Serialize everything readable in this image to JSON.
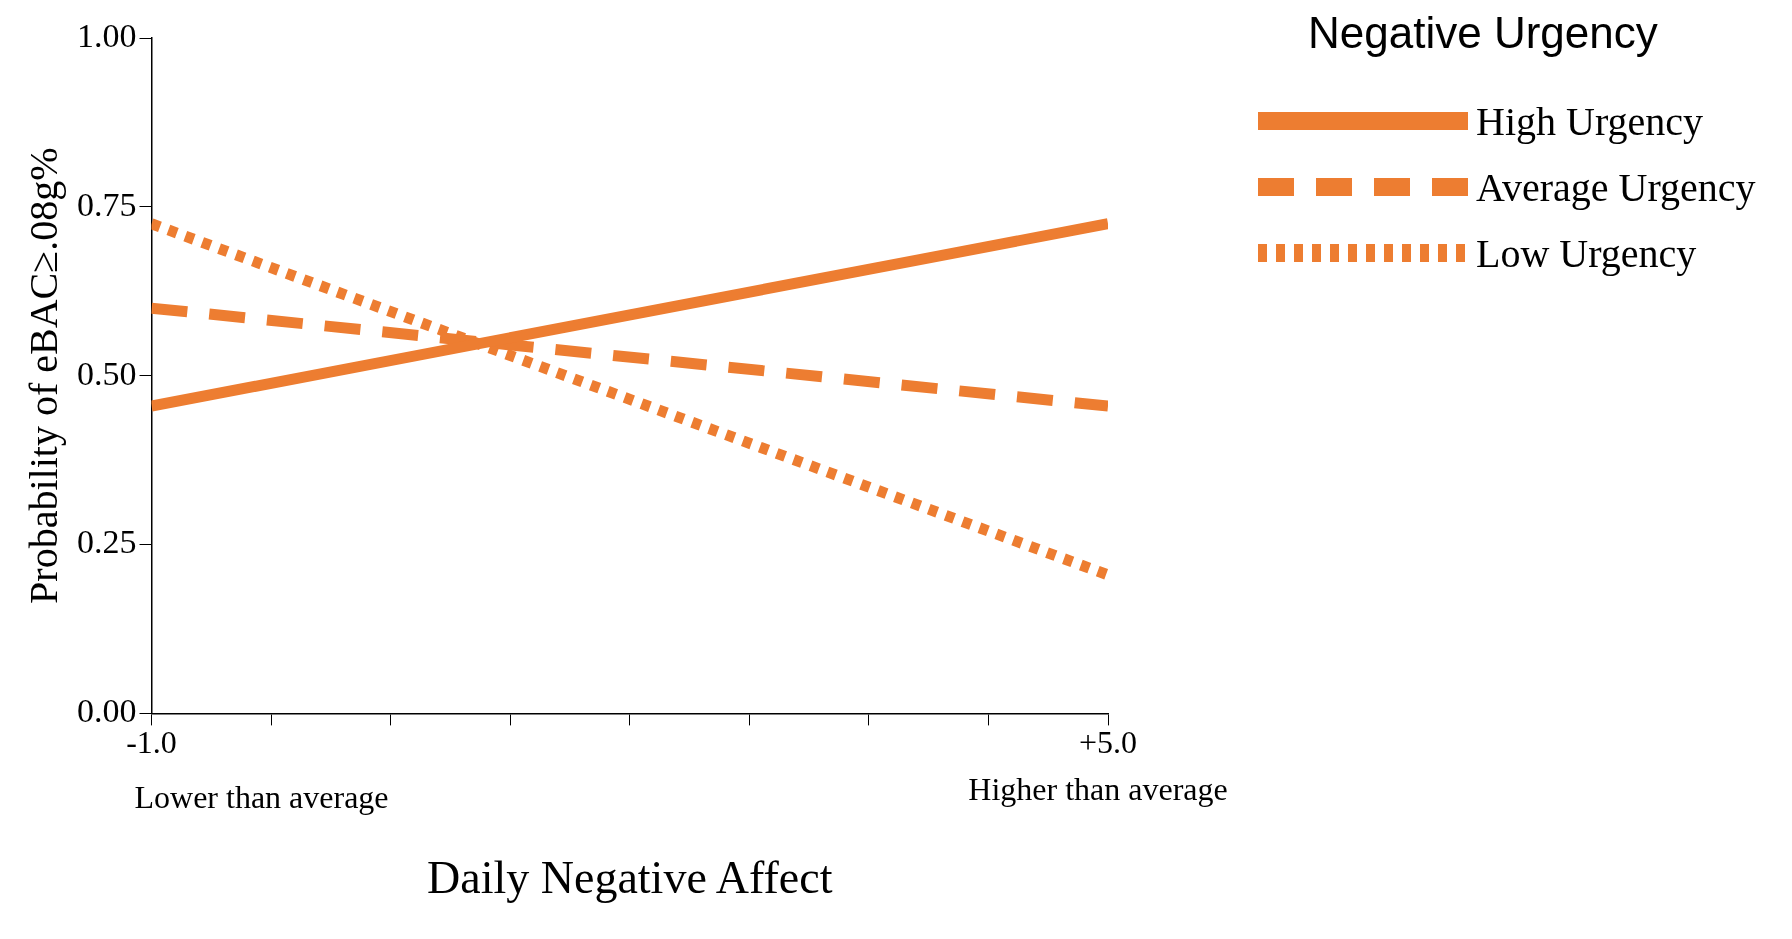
{
  "chart_data": {
    "type": "line",
    "xlabel": "Daily Negative Affect",
    "ylabel": "Probability of eBAC≥.08g%",
    "legend_title": "Negative Urgency",
    "legend": "top right",
    "x": [
      -1,
      5
    ],
    "series": [
      {
        "name": "High Urgency",
        "color": "#ed7d31",
        "values": [
          0.455,
          0.725
        ],
        "line_style": "solid"
      },
      {
        "name": "Average Urgency",
        "color": "#ed7d31",
        "values": [
          0.6,
          0.455
        ],
        "line_style": "dashed"
      },
      {
        "name": "Low Urgency",
        "color": "#ed7d31",
        "values": [
          0.725,
          0.205
        ],
        "line_style": "dotted"
      }
    ],
    "xlim": [
      -1,
      5
    ],
    "xticks": [
      {
        "value": -1,
        "label": "-1.0"
      },
      {
        "value": -0.25,
        "label": null
      },
      {
        "value": 0.5,
        "label": null
      },
      {
        "value": 1.25,
        "label": null
      },
      {
        "value": 2,
        "label": null
      },
      {
        "value": 2.75,
        "label": null
      },
      {
        "value": 3.5,
        "label": null
      },
      {
        "value": 4.25,
        "label": null
      },
      {
        "value": 5,
        "label": "+5.0"
      }
    ],
    "ylim": [
      0,
      1
    ],
    "yticks": [
      {
        "value": 0,
        "label": "0.00"
      },
      {
        "value": 0.25,
        "label": "0.25"
      },
      {
        "value": 0.5,
        "label": "0.50"
      },
      {
        "value": 0.75,
        "label": "0.75"
      },
      {
        "value": 1,
        "label": "1.00"
      }
    ],
    "grid": false,
    "marker": "none",
    "annotations": [
      "Lower than average",
      "Higher than average"
    ]
  }
}
